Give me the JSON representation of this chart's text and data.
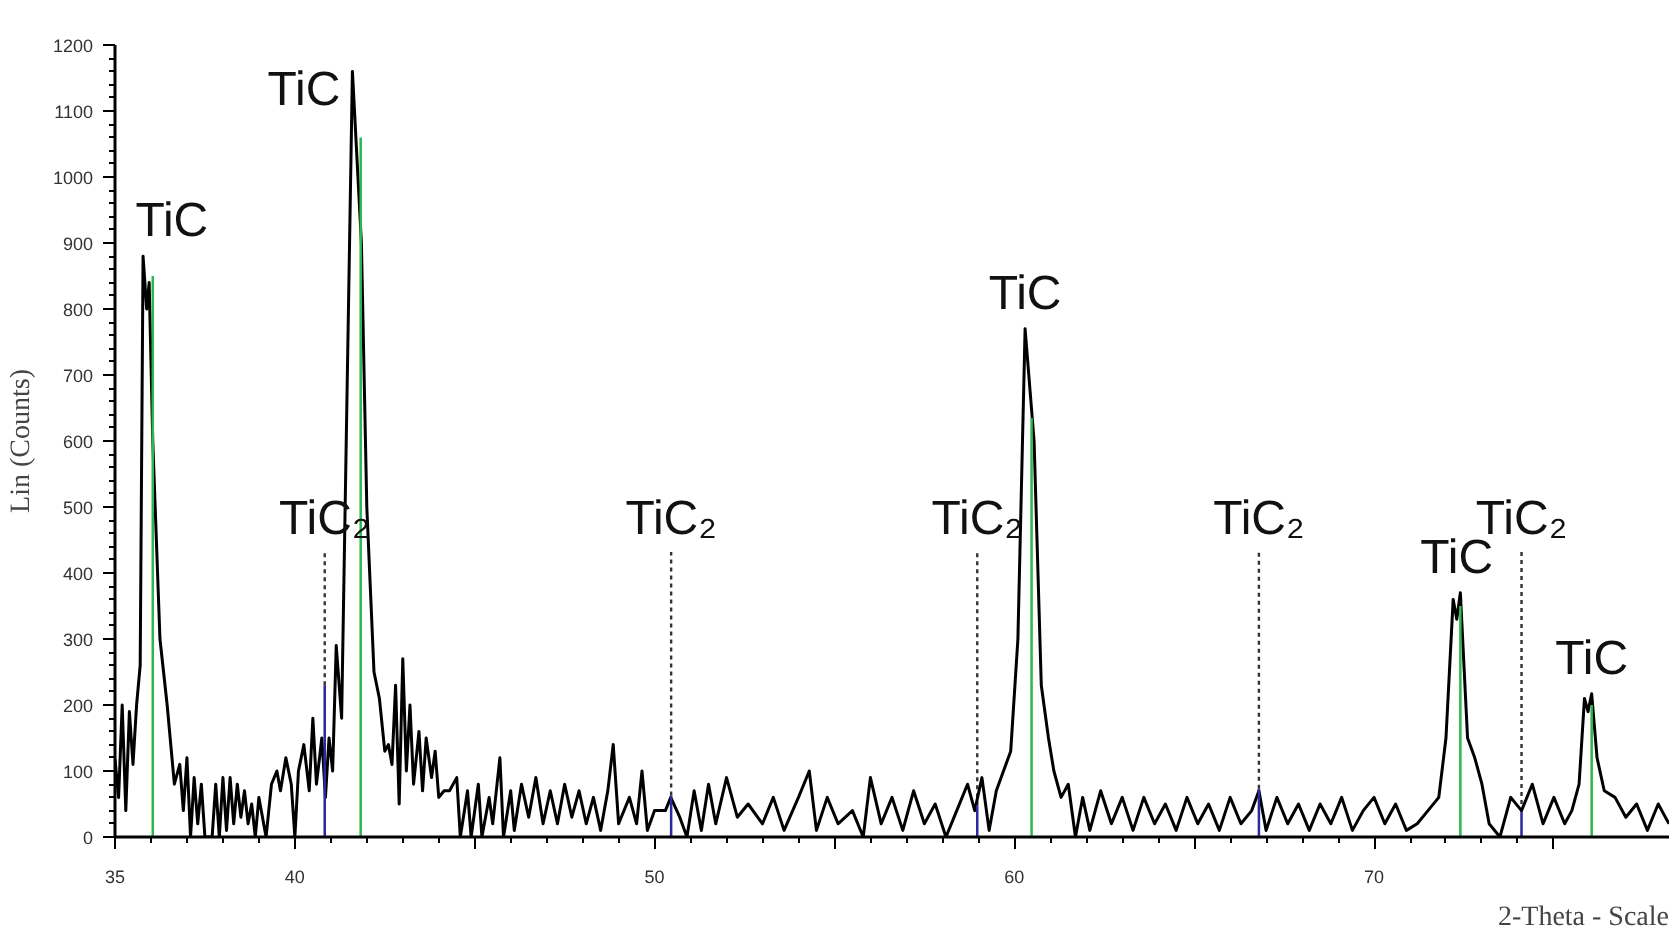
{
  "chart_data": {
    "type": "line",
    "xlabel": "2-Theta - Scale",
    "ylabel": "Lin (Counts)",
    "xlim": [
      35,
      78.2
    ],
    "ylim": [
      0,
      1200
    ],
    "xticks": [
      35,
      40,
      {
        "value": 45,
        "label": null
      },
      50,
      {
        "value": 55,
        "label": null
      },
      60,
      {
        "value": 65,
        "label": null
      },
      70,
      {
        "value": 75,
        "label": null
      }
    ],
    "yticks": [
      0,
      100,
      200,
      300,
      400,
      500,
      600,
      700,
      800,
      900,
      1000,
      1100,
      1200
    ],
    "grid": false,
    "marker": "none",
    "line_style": "solid",
    "series": [
      {
        "color": "#000000",
        "x": [
          35.0,
          35.1,
          35.2,
          35.3,
          35.4,
          35.5,
          35.6,
          35.7,
          35.78,
          35.88,
          35.95,
          36.05,
          36.25,
          36.45,
          36.65,
          36.8,
          36.9,
          37.0,
          37.1,
          37.2,
          37.3,
          37.4,
          37.5,
          37.7,
          37.8,
          37.9,
          38.0,
          38.1,
          38.2,
          38.3,
          38.4,
          38.5,
          38.6,
          38.7,
          38.8,
          38.9,
          39.0,
          39.2,
          39.35,
          39.5,
          39.6,
          39.75,
          39.9,
          40.0,
          40.1,
          40.25,
          40.4,
          40.5,
          40.6,
          40.75,
          40.85,
          40.95,
          41.05,
          41.15,
          41.3,
          41.6,
          41.85,
          42.0,
          42.2,
          42.35,
          42.5,
          42.6,
          42.7,
          42.8,
          42.9,
          43.0,
          43.1,
          43.2,
          43.3,
          43.45,
          43.55,
          43.65,
          43.8,
          43.9,
          44.0,
          44.15,
          44.3,
          44.5,
          44.6,
          44.8,
          44.9,
          45.1,
          45.2,
          45.4,
          45.5,
          45.7,
          45.8,
          46.0,
          46.1,
          46.3,
          46.5,
          46.7,
          46.9,
          47.1,
          47.3,
          47.5,
          47.7,
          47.9,
          48.1,
          48.3,
          48.5,
          48.7,
          48.85,
          49.0,
          49.3,
          49.5,
          49.65,
          49.8,
          50.0,
          50.3,
          50.45,
          50.7,
          50.9,
          51.1,
          51.3,
          51.5,
          51.7,
          52.0,
          52.3,
          52.6,
          53.0,
          53.3,
          53.6,
          54.0,
          54.3,
          54.5,
          54.8,
          55.1,
          55.5,
          55.8,
          56.0,
          56.3,
          56.6,
          56.9,
          57.2,
          57.5,
          57.8,
          58.1,
          58.4,
          58.7,
          58.9,
          59.1,
          59.3,
          59.5,
          59.7,
          59.9,
          60.1,
          60.3,
          60.55,
          60.75,
          60.95,
          61.1,
          61.3,
          61.5,
          61.7,
          61.9,
          62.1,
          62.4,
          62.7,
          63.0,
          63.3,
          63.6,
          63.9,
          64.2,
          64.5,
          64.8,
          65.1,
          65.4,
          65.7,
          66.0,
          66.3,
          66.6,
          66.8,
          67.0,
          67.3,
          67.6,
          67.9,
          68.2,
          68.5,
          68.8,
          69.1,
          69.4,
          69.7,
          70.0,
          70.3,
          70.6,
          70.9,
          71.2,
          71.5,
          71.8,
          72.0,
          72.2,
          72.3,
          72.4,
          72.6,
          72.8,
          73.0,
          73.2,
          73.5,
          73.8,
          74.1,
          74.4,
          74.7,
          75.0,
          75.3,
          75.5,
          75.7,
          75.85,
          75.95,
          76.05,
          76.2,
          76.4,
          76.7,
          77.0,
          77.3,
          77.6,
          77.9,
          78.2
        ],
        "values": [
          118,
          60,
          200,
          40,
          190,
          110,
          200,
          260,
          880,
          800,
          840,
          600,
          300,
          200,
          80,
          110,
          40,
          120,
          0,
          90,
          20,
          80,
          0,
          0,
          80,
          0,
          90,
          10,
          90,
          20,
          80,
          30,
          70,
          20,
          50,
          0,
          60,
          0,
          80,
          100,
          70,
          120,
          80,
          0,
          100,
          140,
          70,
          180,
          80,
          150,
          60,
          150,
          100,
          290,
          180,
          1160,
          900,
          500,
          250,
          210,
          130,
          140,
          110,
          230,
          50,
          270,
          100,
          200,
          80,
          160,
          70,
          150,
          90,
          130,
          60,
          70,
          70,
          90,
          0,
          70,
          0,
          80,
          0,
          60,
          20,
          120,
          0,
          70,
          10,
          80,
          30,
          90,
          20,
          70,
          20,
          80,
          30,
          70,
          20,
          60,
          10,
          70,
          140,
          20,
          60,
          20,
          100,
          10,
          40,
          40,
          60,
          30,
          0,
          70,
          10,
          80,
          20,
          90,
          30,
          50,
          20,
          60,
          10,
          60,
          100,
          10,
          60,
          20,
          40,
          0,
          90,
          20,
          60,
          10,
          70,
          20,
          50,
          0,
          40,
          80,
          40,
          90,
          10,
          70,
          100,
          130,
          300,
          770,
          600,
          230,
          150,
          100,
          60,
          80,
          0,
          60,
          10,
          70,
          20,
          60,
          10,
          60,
          20,
          50,
          10,
          60,
          20,
          50,
          10,
          60,
          20,
          40,
          70,
          10,
          60,
          20,
          50,
          10,
          50,
          20,
          60,
          10,
          40,
          60,
          20,
          50,
          10,
          20,
          40,
          60,
          150,
          360,
          330,
          370,
          150,
          120,
          80,
          20,
          0,
          60,
          40,
          80,
          20,
          60,
          20,
          40,
          80,
          210,
          190,
          217,
          120,
          70,
          60,
          30,
          50,
          10,
          50,
          20
        ]
      },
      {
        "type": "bar",
        "color": "#2db84d",
        "x": [
          36.05,
          41.83,
          60.48,
          72.4,
          76.05
        ],
        "values": [
          850,
          1060,
          635,
          350,
          200
        ]
      },
      {
        "type": "bar",
        "color": "#2a2aa0",
        "x": [
          40.83,
          50.46,
          58.97,
          66.8,
          74.1
        ],
        "values": [
          230,
          63,
          48,
          73,
          38
        ]
      }
    ],
    "annotations": [
      {
        "text": "TiC",
        "x": 35.9,
        "y": 880
      },
      {
        "text": "TiC",
        "x": 41.6,
        "y": 1160
      },
      {
        "text": "TiC",
        "x": 60.3,
        "y": 770
      },
      {
        "text": "TiC",
        "x": 72.3,
        "y": 370
      },
      {
        "text": "TiC",
        "x": 76.05,
        "y": 217
      },
      {
        "text": "TiC₂",
        "x": 40.83,
        "y": 230
      },
      {
        "text": "TiC₂",
        "x": 50.46,
        "y": 63
      },
      {
        "text": "TiC₂",
        "x": 58.97,
        "y": 48
      },
      {
        "text": "TiC₂",
        "x": 66.8,
        "y": 73
      },
      {
        "text": "TiC₂",
        "x": 74.1,
        "y": 38
      }
    ]
  }
}
